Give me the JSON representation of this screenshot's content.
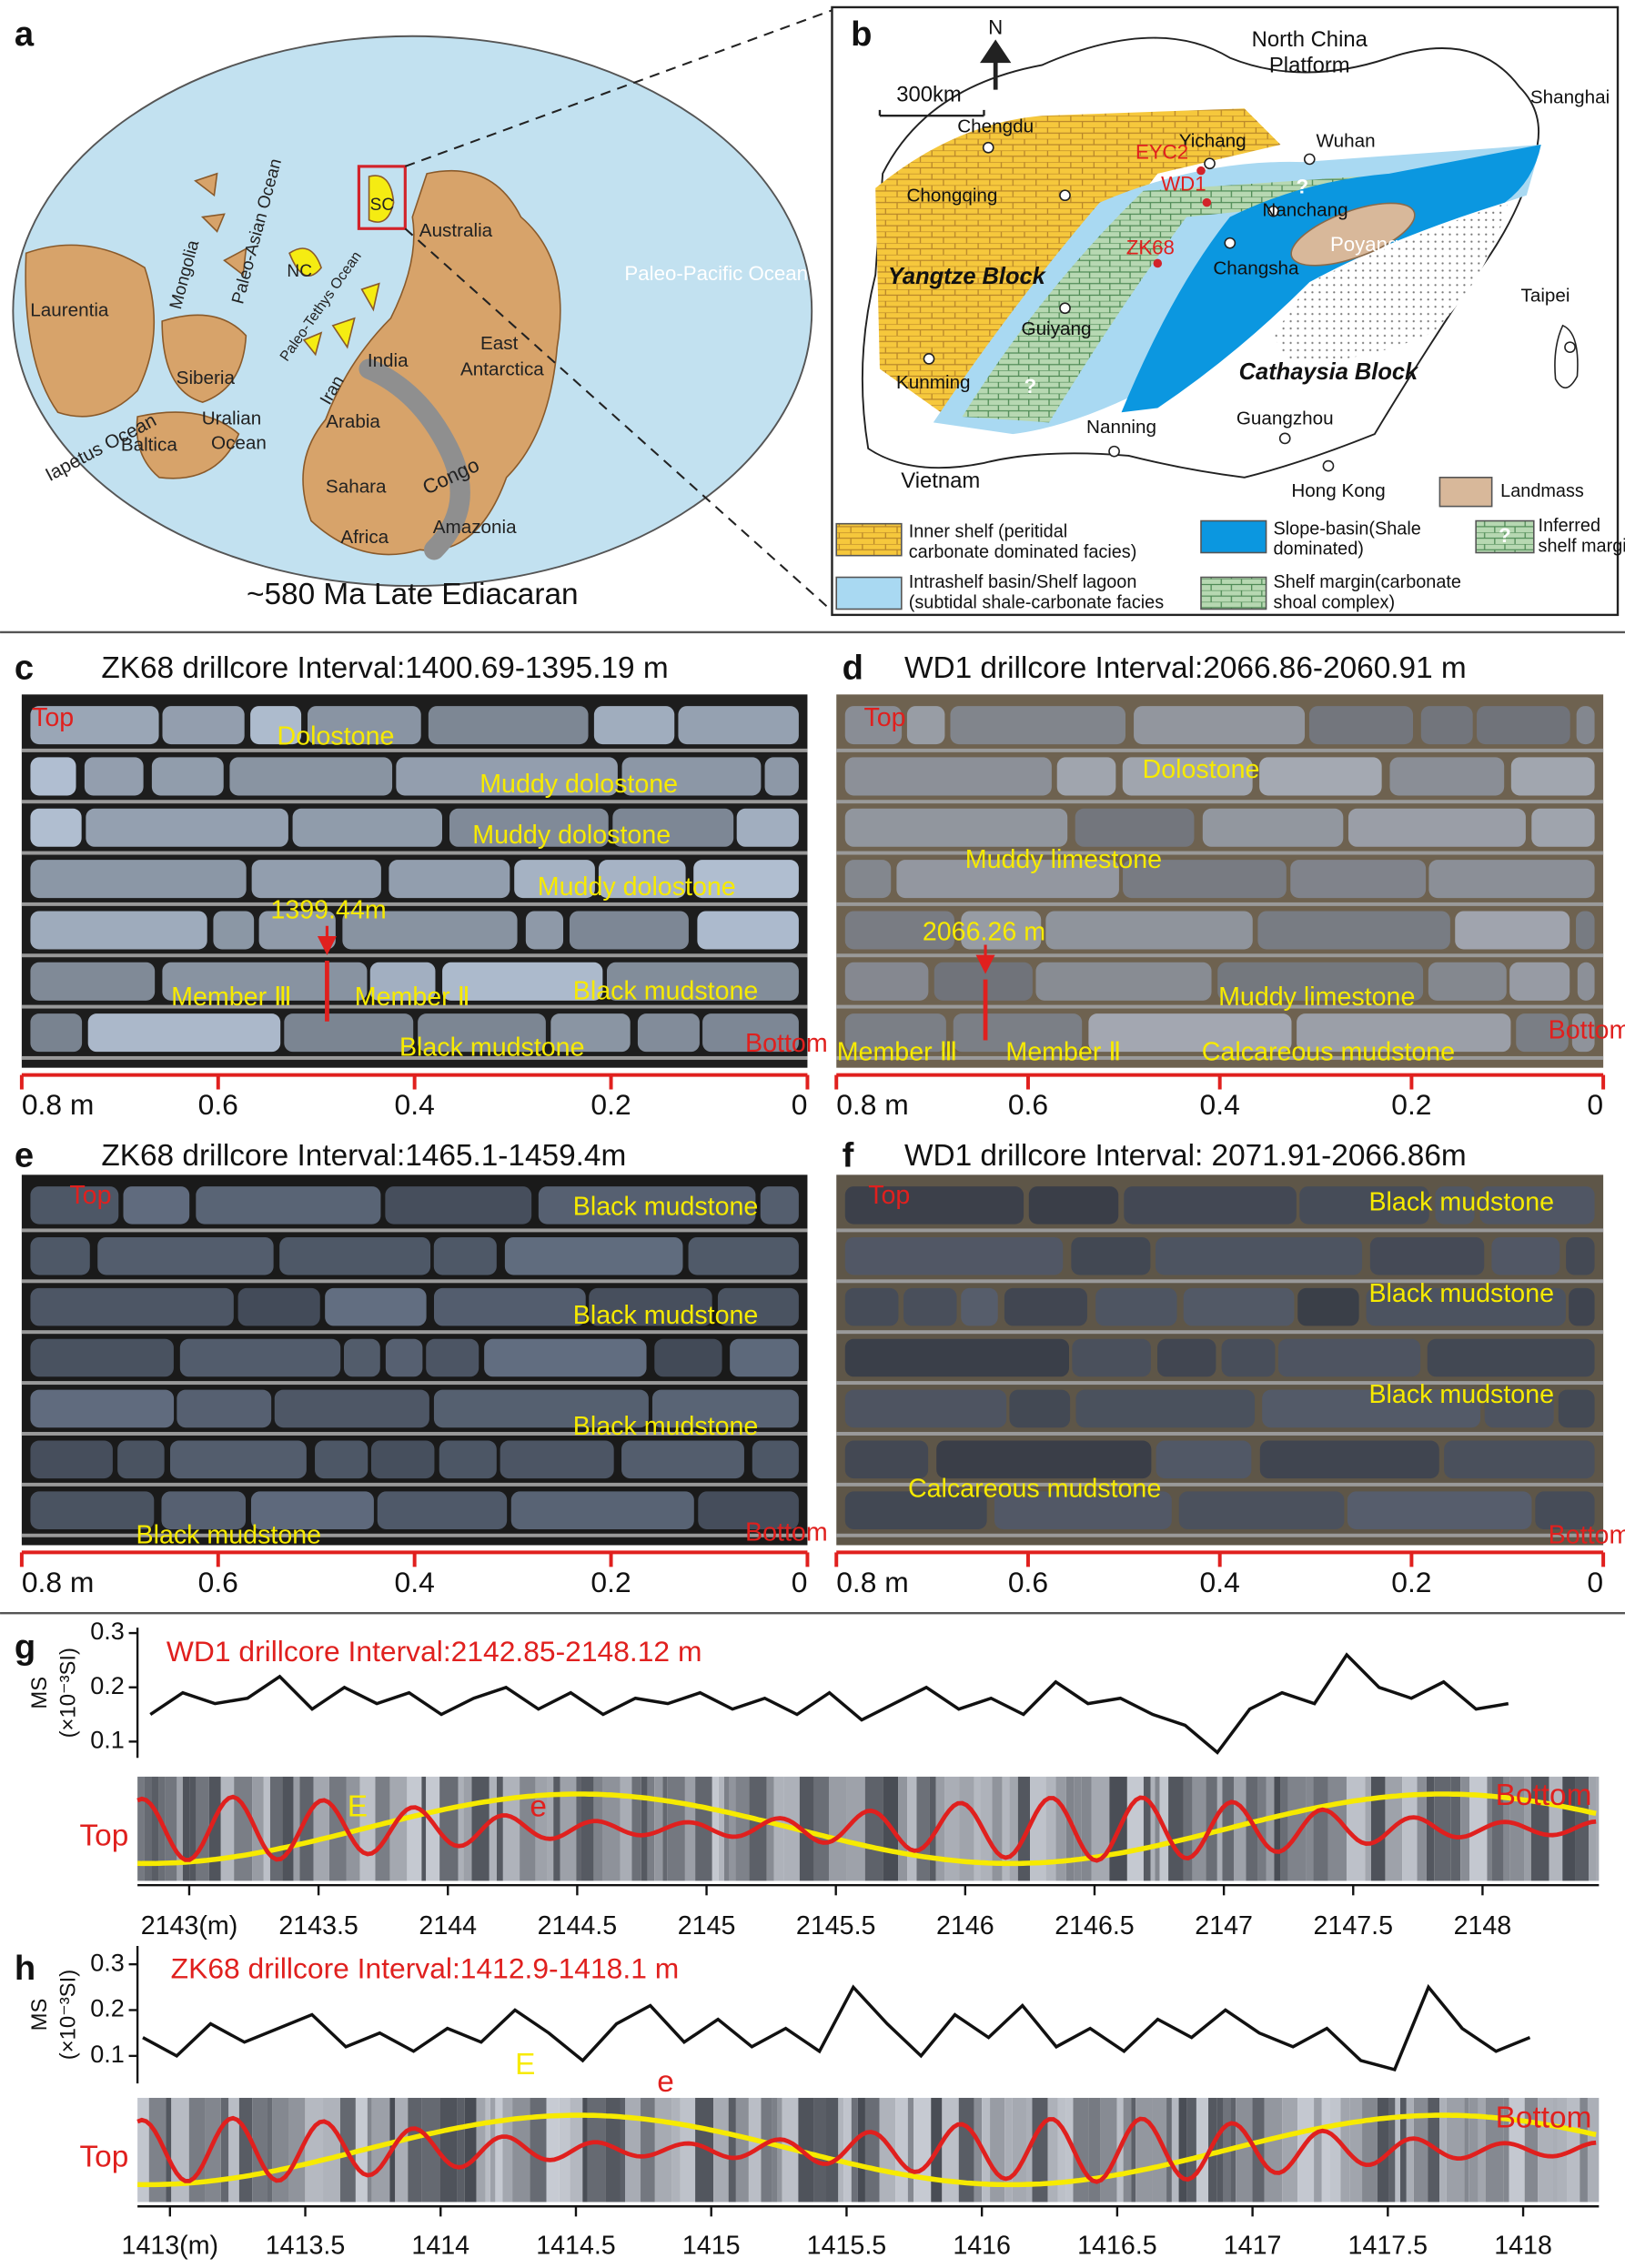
{
  "panel_labels": [
    "a",
    "b",
    "c",
    "d",
    "e",
    "f"
  ],
  "map_a": {
    "caption": "~580 Ma  Late Ediacaran",
    "regions": [
      "Paleo-Pacific Ocean",
      "Laurentia",
      "Mongolia",
      "Paleo-Asian Ocean",
      "NC",
      "SC",
      "Australia",
      "Paleo-Tethys Ocean",
      "Siberia",
      "India",
      "East",
      "Antarctica",
      "Iran",
      "Arabia",
      "Uralian",
      "Ocean",
      "Baltica",
      "Iapetus Ocean",
      "Sahara",
      "Congo",
      "Africa",
      "Amazonia"
    ]
  },
  "map_b": {
    "north": "N",
    "scale": "300km",
    "question": "?",
    "places": [
      "North China",
      "Platform",
      "Shanghai",
      "Chengdu",
      "Yichang",
      "Wuhan",
      "EYC2",
      "WD1",
      "Chongqing",
      "ZK68",
      "Nanchang",
      "Poyang",
      "Changsha",
      "Yangtze Block",
      "Guiyang",
      "Taipei",
      "Kunming",
      "Cathaysia Block",
      "Nanning",
      "Guangzhou",
      "Vietnam",
      "Hong Kong"
    ],
    "legend": [
      {
        "lines": [
          "Landmass"
        ]
      },
      {
        "lines": [
          "Inner shelf (peritidal",
          "carbonate dominated facies)"
        ]
      },
      {
        "lines": [
          "Slope-basin(Shale",
          "dominated)"
        ]
      },
      {
        "lines": [
          "Inferred",
          "shelf margin"
        ]
      },
      {
        "lines": [
          "Intrashelf basin/Shelf lagoon",
          "(subtidal shale-carbonate facies"
        ]
      },
      {
        "lines": [
          "Shelf margin(carbonate",
          "shoal complex)"
        ]
      }
    ]
  },
  "cores": [
    {
      "title": "ZK68 drillcore  Interval:1400.69-1395.19 m",
      "notes": [
        "Top",
        "Dolostone",
        "Muddy dolostone",
        "Muddy dolostone",
        "Muddy dolostone",
        "1399.44m",
        "Member Ⅲ",
        "Member Ⅱ",
        "Black mudstone",
        "Black mudstone",
        "Bottom"
      ],
      "scale": [
        {
          "value": 0.8,
          "label": "0.8 m"
        },
        0.6,
        0.4,
        0.2,
        0
      ]
    },
    {
      "title": "WD1 drillcore  Interval:2066.86-2060.91 m",
      "notes": [
        "Top",
        "Dolostone",
        "Muddy limestone",
        "2066.26 m",
        "Muddy limestone",
        "Member Ⅲ",
        "Member Ⅱ",
        "Calcareous mudstone",
        "Bottom"
      ],
      "scale": [
        {
          "value": 0.8,
          "label": "0.8 m"
        },
        0.6,
        0.4,
        0.2,
        0
      ]
    },
    {
      "title": "ZK68 drillcore  Interval:1465.1-1459.4m",
      "notes": [
        "Top",
        "Black mudstone",
        "Black mudstone",
        "Black mudstone",
        "Black mudstone",
        "Bottom"
      ],
      "scale": [
        {
          "value": 0.8,
          "label": "0.8 m"
        },
        0.6,
        0.4,
        0.2,
        0
      ]
    },
    {
      "title": "WD1 drillcore  Interval: 2071.91-2066.86m",
      "notes": [
        "Top",
        "Black mudstone",
        "Black mudstone",
        "Black mudstone",
        "Calcareous mudstone",
        "Bottom"
      ],
      "scale": [
        {
          "value": 0.8,
          "label": "0.8 m"
        },
        0.6,
        0.4,
        0.2,
        0
      ]
    }
  ],
  "chart_data": [
    {
      "type": "line",
      "label": "g",
      "title": "WD1 drillcore   Interval:2142.85-2148.12 m",
      "ylabel": "MS",
      "yunit": "(×10⁻³SI)",
      "annotations": [
        "Top",
        "E",
        "e",
        "Bottom"
      ],
      "color": "#111111",
      "x": [
        2142.85,
        2142.975,
        2143.1,
        2143.225,
        2143.35,
        2143.475,
        2143.6,
        2143.725,
        2143.85,
        2143.975,
        2144.1,
        2144.225,
        2144.35,
        2144.475,
        2144.6,
        2144.725,
        2144.85,
        2144.975,
        2145.1,
        2145.225,
        2145.35,
        2145.475,
        2145.6,
        2145.725,
        2145.85,
        2145.975,
        2146.1,
        2146.225,
        2146.35,
        2146.475,
        2146.6,
        2146.725,
        2146.85,
        2146.975,
        2147.1,
        2147.225,
        2147.35,
        2147.475,
        2147.6,
        2147.725,
        2147.85,
        2147.975,
        2148.1
      ],
      "values": [
        0.15,
        0.19,
        0.17,
        0.18,
        0.22,
        0.16,
        0.2,
        0.17,
        0.19,
        0.15,
        0.18,
        0.2,
        0.16,
        0.19,
        0.15,
        0.18,
        0.17,
        0.19,
        0.16,
        0.18,
        0.15,
        0.19,
        0.14,
        0.17,
        0.2,
        0.16,
        0.18,
        0.15,
        0.21,
        0.17,
        0.18,
        0.15,
        0.13,
        0.08,
        0.16,
        0.19,
        0.17,
        0.26,
        0.2,
        0.18,
        0.21,
        0.16,
        0.17
      ],
      "xlim": [
        2142.8,
        2148.45
      ],
      "xticks": [
        {
          "value": 2143,
          "label": "2143(m)"
        },
        2143.5,
        2144,
        2144.5,
        2145,
        2145.5,
        2146,
        2146.5,
        2147,
        2147.5,
        2148
      ],
      "ylim": [
        0.07,
        0.31
      ],
      "yticks": [
        0.1,
        0.2,
        0.3
      ]
    },
    {
      "type": "line",
      "label": "h",
      "title": "ZK68 drillcore  Interval:1412.9-1418.1 m",
      "ylabel": "MS",
      "yunit": "(×10⁻³SI)",
      "annotations": [
        "Top",
        "E",
        "e",
        "Bottom"
      ],
      "color": "#111111",
      "x": [
        1412.9,
        1413.025,
        1413.15,
        1413.275,
        1413.4,
        1413.525,
        1413.65,
        1413.775,
        1413.9,
        1414.025,
        1414.15,
        1414.275,
        1414.4,
        1414.525,
        1414.65,
        1414.775,
        1414.9,
        1415.025,
        1415.15,
        1415.275,
        1415.4,
        1415.525,
        1415.65,
        1415.775,
        1415.9,
        1416.025,
        1416.15,
        1416.275,
        1416.4,
        1416.525,
        1416.65,
        1416.775,
        1416.9,
        1417.025,
        1417.15,
        1417.275,
        1417.4,
        1417.525,
        1417.65,
        1417.775,
        1417.9,
        1418.025
      ],
      "values": [
        0.14,
        0.1,
        0.17,
        0.13,
        0.16,
        0.19,
        0.12,
        0.15,
        0.11,
        0.16,
        0.13,
        0.2,
        0.15,
        0.09,
        0.17,
        0.21,
        0.13,
        0.18,
        0.12,
        0.16,
        0.11,
        0.25,
        0.17,
        0.1,
        0.19,
        0.14,
        0.21,
        0.12,
        0.16,
        0.11,
        0.18,
        0.14,
        0.2,
        0.15,
        0.12,
        0.16,
        0.09,
        0.07,
        0.25,
        0.16,
        0.11,
        0.14
      ],
      "xlim": [
        1412.88,
        1418.28
      ],
      "xticks": [
        {
          "value": 1413,
          "label": "1413(m)"
        },
        1413.5,
        1414,
        1414.5,
        1415,
        1415.5,
        1416,
        1416.5,
        1417,
        1417.5,
        1418
      ],
      "ylim": [
        0.04,
        0.34
      ],
      "yticks": [
        0.1,
        0.2,
        0.3
      ]
    }
  ]
}
